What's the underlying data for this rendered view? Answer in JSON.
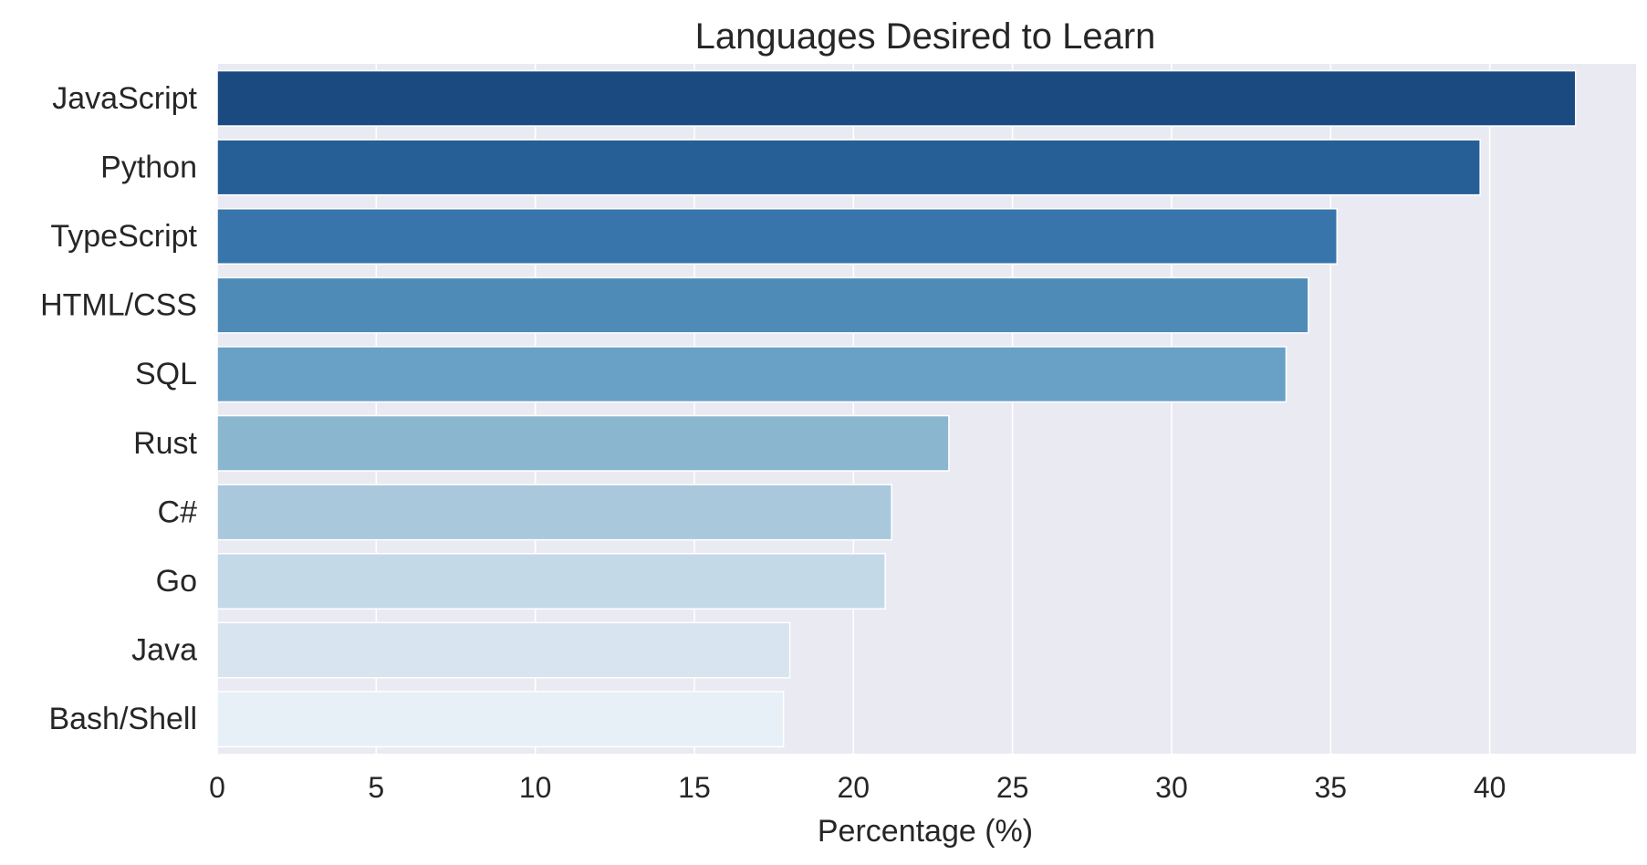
{
  "chart_data": {
    "type": "bar",
    "orientation": "horizontal",
    "title": "Languages Desired to Learn",
    "xlabel": "Percentage (%)",
    "ylabel": "",
    "categories": [
      "JavaScript",
      "Python",
      "TypeScript",
      "HTML/CSS",
      "SQL",
      "Rust",
      "C#",
      "Go",
      "Java",
      "Bash/Shell"
    ],
    "values": [
      42.7,
      39.7,
      35.2,
      34.3,
      33.6,
      23.0,
      21.2,
      21.0,
      18.0,
      17.8
    ],
    "xlim": [
      0,
      44.6
    ],
    "xticks": [
      0,
      5,
      10,
      15,
      20,
      25,
      30,
      35,
      40
    ],
    "grid": true,
    "colors": [
      "#1b4a80",
      "#255f96",
      "#3875aa",
      "#4f8bb7",
      "#69a0c6",
      "#8ab6cf",
      "#a9c8db",
      "#c4d9e7",
      "#d8e4ef",
      "#e7eff7"
    ],
    "background": "#eaeaf2",
    "grid_color": "#ffffff"
  }
}
